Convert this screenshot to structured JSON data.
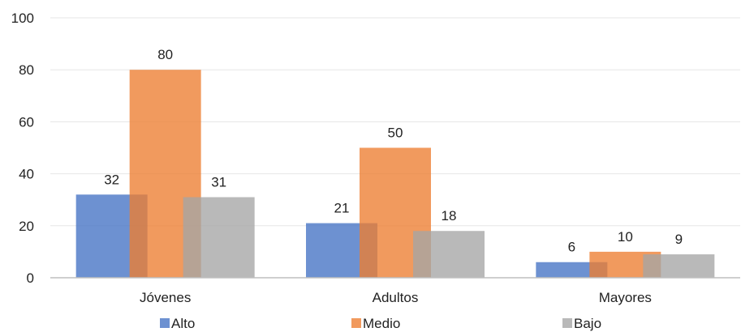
{
  "chart_data": {
    "type": "bar",
    "categories": [
      "Jóvenes",
      "Adultos",
      "Mayores"
    ],
    "series": [
      {
        "name": "Alto",
        "values": [
          32,
          21,
          6
        ],
        "color": "#4472c4"
      },
      {
        "name": "Medio",
        "values": [
          80,
          50,
          10
        ],
        "color": "#ed7d31"
      },
      {
        "name": "Bajo",
        "values": [
          31,
          18,
          9
        ],
        "color": "#a5a5a5"
      }
    ],
    "ylim": [
      0,
      100
    ],
    "yticks": [
      0,
      20,
      40,
      60,
      80,
      100
    ],
    "bar_overlap": true,
    "grid": true,
    "legend_position": "bottom"
  }
}
